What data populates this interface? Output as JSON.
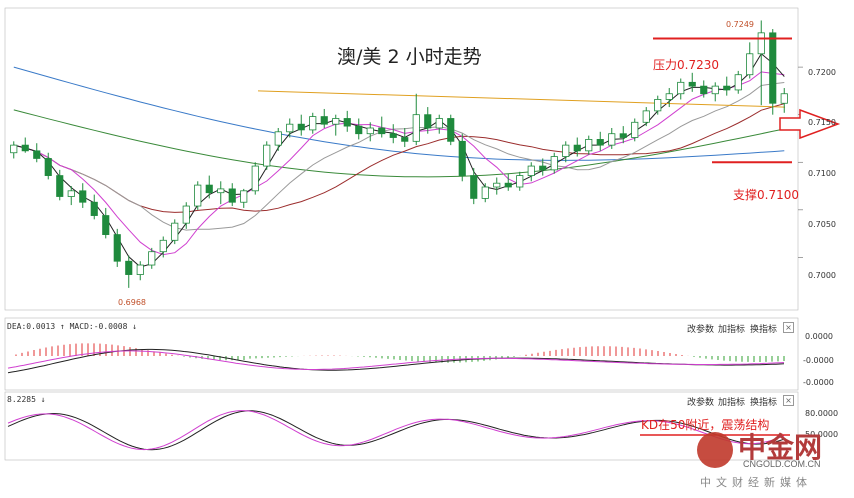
{
  "chart_data": [
    {
      "type": "candlestick",
      "title": "澳/美 2 小时走势",
      "y_ticks": [
        "0.7200",
        "0.7150",
        "0.7100",
        "0.7050",
        "0.7000"
      ],
      "ylim": [
        0.695,
        0.726
      ],
      "annotations": {
        "high_label": "0.7249",
        "low_label": "0.6968",
        "resistance_label": "压力0.7230",
        "resistance_value": 0.723,
        "support_label": "支撑0.7100",
        "support_value": 0.71
      },
      "candles": [
        [
          0.711,
          0.7122,
          0.7104,
          0.7118
        ],
        [
          0.7118,
          0.7126,
          0.711,
          0.7112
        ],
        [
          0.7112,
          0.712,
          0.71,
          0.7104
        ],
        [
          0.7104,
          0.711,
          0.7082,
          0.7086
        ],
        [
          0.7086,
          0.7092,
          0.706,
          0.7064
        ],
        [
          0.7064,
          0.7075,
          0.7055,
          0.707
        ],
        [
          0.707,
          0.7078,
          0.7052,
          0.7058
        ],
        [
          0.7058,
          0.7066,
          0.704,
          0.7044
        ],
        [
          0.7044,
          0.7052,
          0.702,
          0.7024
        ],
        [
          0.7024,
          0.703,
          0.699,
          0.6996
        ],
        [
          0.6996,
          0.7002,
          0.6968,
          0.6982
        ],
        [
          0.6982,
          0.6996,
          0.6976,
          0.6992
        ],
        [
          0.6992,
          0.701,
          0.6988,
          0.7006
        ],
        [
          0.7006,
          0.7022,
          0.7,
          0.7018
        ],
        [
          0.7018,
          0.704,
          0.7014,
          0.7036
        ],
        [
          0.7036,
          0.7058,
          0.703,
          0.7054
        ],
        [
          0.7054,
          0.708,
          0.705,
          0.7076
        ],
        [
          0.7076,
          0.7086,
          0.7062,
          0.7068
        ],
        [
          0.7068,
          0.708,
          0.7056,
          0.7072
        ],
        [
          0.7072,
          0.7078,
          0.7054,
          0.7058
        ],
        [
          0.7058,
          0.7072,
          0.7052,
          0.707
        ],
        [
          0.707,
          0.71,
          0.7066,
          0.7096
        ],
        [
          0.7096,
          0.7122,
          0.7092,
          0.7118
        ],
        [
          0.7118,
          0.7136,
          0.7112,
          0.7132
        ],
        [
          0.7132,
          0.7146,
          0.7126,
          0.714
        ],
        [
          0.714,
          0.715,
          0.7128,
          0.7134
        ],
        [
          0.7134,
          0.7152,
          0.713,
          0.7148
        ],
        [
          0.7148,
          0.7156,
          0.7136,
          0.714
        ],
        [
          0.714,
          0.715,
          0.7128,
          0.7146
        ],
        [
          0.7146,
          0.7154,
          0.7132,
          0.7138
        ],
        [
          0.7138,
          0.7146,
          0.7124,
          0.713
        ],
        [
          0.713,
          0.7142,
          0.7122,
          0.7136
        ],
        [
          0.7136,
          0.7148,
          0.7126,
          0.713
        ],
        [
          0.713,
          0.714,
          0.712,
          0.7126
        ],
        [
          0.7126,
          0.7136,
          0.7116,
          0.7122
        ],
        [
          0.7122,
          0.7172,
          0.7118,
          0.715
        ],
        [
          0.715,
          0.7158,
          0.713,
          0.7136
        ],
        [
          0.7136,
          0.715,
          0.713,
          0.7146
        ],
        [
          0.7146,
          0.715,
          0.7118,
          0.7122
        ],
        [
          0.7122,
          0.713,
          0.708,
          0.7086
        ],
        [
          0.7086,
          0.7094,
          0.7056,
          0.7062
        ],
        [
          0.7062,
          0.7078,
          0.7058,
          0.7074
        ],
        [
          0.7074,
          0.7084,
          0.7066,
          0.7078
        ],
        [
          0.7078,
          0.7088,
          0.707,
          0.7074
        ],
        [
          0.7074,
          0.709,
          0.707,
          0.7086
        ],
        [
          0.7086,
          0.71,
          0.708,
          0.7096
        ],
        [
          0.7096,
          0.7104,
          0.7086,
          0.7092
        ],
        [
          0.7092,
          0.711,
          0.7088,
          0.7106
        ],
        [
          0.7106,
          0.7122,
          0.71,
          0.7118
        ],
        [
          0.7118,
          0.7126,
          0.7106,
          0.7112
        ],
        [
          0.7112,
          0.7128,
          0.7108,
          0.7124
        ],
        [
          0.7124,
          0.7132,
          0.7112,
          0.7118
        ],
        [
          0.7118,
          0.7136,
          0.7114,
          0.713
        ],
        [
          0.713,
          0.7138,
          0.712,
          0.7126
        ],
        [
          0.7126,
          0.7146,
          0.7122,
          0.7142
        ],
        [
          0.7142,
          0.7158,
          0.7138,
          0.7154
        ],
        [
          0.7154,
          0.717,
          0.715,
          0.7166
        ],
        [
          0.7166,
          0.7178,
          0.7158,
          0.7172
        ],
        [
          0.7172,
          0.7188,
          0.7166,
          0.7184
        ],
        [
          0.7184,
          0.7194,
          0.7174,
          0.718
        ],
        [
          0.718,
          0.7186,
          0.7168,
          0.7172
        ],
        [
          0.7172,
          0.7184,
          0.7164,
          0.718
        ],
        [
          0.718,
          0.719,
          0.717,
          0.7176
        ],
        [
          0.7176,
          0.7196,
          0.7172,
          0.7192
        ],
        [
          0.7192,
          0.7226,
          0.7188,
          0.7214
        ],
        [
          0.7214,
          0.7249,
          0.716,
          0.7236
        ],
        [
          0.7236,
          0.724,
          0.715,
          0.7162
        ],
        [
          0.7162,
          0.7178,
          0.7152,
          0.7172
        ]
      ]
    },
    {
      "type": "line",
      "title": "",
      "indicator_label": "DEA:0.0013 ↑  MACD:-0.0008 ↓",
      "y_ticks": [
        "0.0000",
        "-0.0000",
        "-0.0000"
      ],
      "buttons": [
        "改参数",
        "加指标",
        "换指标"
      ]
    },
    {
      "type": "line",
      "title": "",
      "indicator_label": "8.2285 ↓",
      "y_ticks": [
        "80.0000",
        "50.0000"
      ],
      "annotation": "KD在50附近，震荡结构",
      "buttons": [
        "改参数",
        "加指标",
        "换指标"
      ]
    }
  ],
  "close_glyph": "×",
  "watermark": {
    "name": "中金网",
    "url": "CNGOLD.COM.CN",
    "sub": "中文财经新媒体"
  },
  "colors": {
    "up": "#1f8a3d",
    "down": "#1f8a3d",
    "resistance": "#e02020",
    "support": "#e02020",
    "ma_black": "#222222",
    "ma_magenta": "#d040d0",
    "ma_red": "#9b2d2d",
    "ma_gray": "#9a9a9a",
    "ma_green": "#3a8a3a",
    "ma_blue": "#3a7ac8",
    "ma_orange": "#e0a020"
  }
}
